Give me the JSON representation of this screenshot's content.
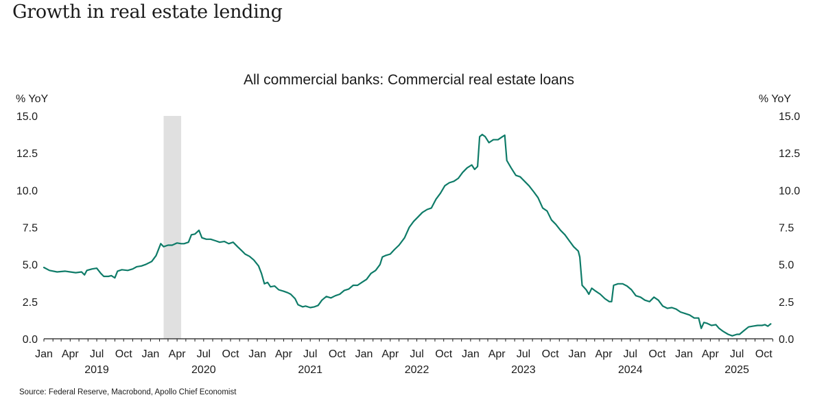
{
  "page": {
    "title": "Growth in real estate lending",
    "source": "Source: Federal Reserve, Macrobond, Apollo Chief Economist"
  },
  "chart_data": {
    "type": "line",
    "title": "All commercial banks: Commercial real estate loans",
    "ylabel_left": "% YoY",
    "ylabel_right": "% YoY",
    "ylim": [
      0,
      15
    ],
    "yticks": [
      "0.0",
      "2.5",
      "5.0",
      "7.5",
      "10.0",
      "12.5",
      "15.0"
    ],
    "x_range": [
      "2019-01-01",
      "2025-10-31"
    ],
    "month_ticks": [
      "Jan",
      "Apr",
      "Jul",
      "Oct",
      "Jan",
      "Apr",
      "Jul",
      "Oct",
      "Jan",
      "Apr",
      "Jul",
      "Oct",
      "Jan",
      "Apr",
      "Jul",
      "Oct",
      "Jan",
      "Apr",
      "Jul",
      "Oct",
      "Jan",
      "Apr",
      "Jul",
      "Oct",
      "Jan",
      "Apr",
      "Jul",
      "Oct"
    ],
    "years": [
      "2019",
      "2020",
      "2021",
      "2022",
      "2023",
      "2024",
      "2025"
    ],
    "recession_band": [
      "2020-02-15",
      "2020-04-15"
    ],
    "line_color": "#0e7b68",
    "band_color": "#e0e0e0",
    "series": [
      {
        "points": [
          [
            "2019-01-01",
            4.8
          ],
          [
            "2019-01-20",
            4.6
          ],
          [
            "2019-02-15",
            4.5
          ],
          [
            "2019-03-15",
            4.55
          ],
          [
            "2019-04-01",
            4.5
          ],
          [
            "2019-04-20",
            4.45
          ],
          [
            "2019-05-10",
            4.5
          ],
          [
            "2019-05-20",
            4.3
          ],
          [
            "2019-05-28",
            4.6
          ],
          [
            "2019-06-15",
            4.7
          ],
          [
            "2019-07-01",
            4.75
          ],
          [
            "2019-07-15",
            4.4
          ],
          [
            "2019-07-25",
            4.2
          ],
          [
            "2019-08-10",
            4.2
          ],
          [
            "2019-08-20",
            4.25
          ],
          [
            "2019-09-01",
            4.1
          ],
          [
            "2019-09-10",
            4.55
          ],
          [
            "2019-09-25",
            4.65
          ],
          [
            "2019-10-15",
            4.6
          ],
          [
            "2019-11-01",
            4.7
          ],
          [
            "2019-11-15",
            4.85
          ],
          [
            "2019-12-01",
            4.9
          ],
          [
            "2019-12-15",
            5.0
          ],
          [
            "2020-01-05",
            5.2
          ],
          [
            "2020-01-20",
            5.6
          ],
          [
            "2020-02-05",
            6.4
          ],
          [
            "2020-02-15",
            6.2
          ],
          [
            "2020-03-01",
            6.3
          ],
          [
            "2020-03-15",
            6.3
          ],
          [
            "2020-04-01",
            6.45
          ],
          [
            "2020-04-15",
            6.4
          ],
          [
            "2020-04-25",
            6.4
          ],
          [
            "2020-05-10",
            6.5
          ],
          [
            "2020-05-20",
            7.0
          ],
          [
            "2020-06-01",
            7.05
          ],
          [
            "2020-06-15",
            7.3
          ],
          [
            "2020-06-25",
            6.8
          ],
          [
            "2020-07-10",
            6.7
          ],
          [
            "2020-07-25",
            6.7
          ],
          [
            "2020-08-10",
            6.6
          ],
          [
            "2020-08-25",
            6.5
          ],
          [
            "2020-09-10",
            6.55
          ],
          [
            "2020-09-25",
            6.4
          ],
          [
            "2020-10-10",
            6.5
          ],
          [
            "2020-10-25",
            6.2
          ],
          [
            "2020-11-10",
            5.9
          ],
          [
            "2020-11-20",
            5.7
          ],
          [
            "2020-12-05",
            5.55
          ],
          [
            "2020-12-20",
            5.3
          ],
          [
            "2021-01-05",
            4.9
          ],
          [
            "2021-01-15",
            4.4
          ],
          [
            "2021-01-25",
            3.7
          ],
          [
            "2021-02-05",
            3.8
          ],
          [
            "2021-02-15",
            3.5
          ],
          [
            "2021-03-01",
            3.55
          ],
          [
            "2021-03-15",
            3.3
          ],
          [
            "2021-04-01",
            3.2
          ],
          [
            "2021-04-15",
            3.1
          ],
          [
            "2021-04-25",
            3.0
          ],
          [
            "2021-05-10",
            2.7
          ],
          [
            "2021-05-20",
            2.3
          ],
          [
            "2021-06-05",
            2.15
          ],
          [
            "2021-06-15",
            2.2
          ],
          [
            "2021-07-01",
            2.1
          ],
          [
            "2021-07-15",
            2.15
          ],
          [
            "2021-07-28",
            2.25
          ],
          [
            "2021-08-10",
            2.6
          ],
          [
            "2021-08-25",
            2.85
          ],
          [
            "2021-09-10",
            2.75
          ],
          [
            "2021-09-25",
            2.9
          ],
          [
            "2021-10-10",
            3.0
          ],
          [
            "2021-10-25",
            3.25
          ],
          [
            "2021-11-10",
            3.35
          ],
          [
            "2021-11-25",
            3.6
          ],
          [
            "2021-12-10",
            3.6
          ],
          [
            "2021-12-25",
            3.8
          ],
          [
            "2022-01-10",
            4.0
          ],
          [
            "2022-01-25",
            4.4
          ],
          [
            "2022-02-10",
            4.6
          ],
          [
            "2022-02-25",
            5.0
          ],
          [
            "2022-03-05",
            5.5
          ],
          [
            "2022-03-15",
            5.6
          ],
          [
            "2022-04-01",
            5.7
          ],
          [
            "2022-04-15",
            6.0
          ],
          [
            "2022-05-01",
            6.3
          ],
          [
            "2022-05-20",
            6.8
          ],
          [
            "2022-06-05",
            7.5
          ],
          [
            "2022-06-20",
            7.9
          ],
          [
            "2022-07-05",
            8.2
          ],
          [
            "2022-07-20",
            8.5
          ],
          [
            "2022-08-05",
            8.7
          ],
          [
            "2022-08-20",
            8.8
          ],
          [
            "2022-09-05",
            9.4
          ],
          [
            "2022-09-20",
            9.8
          ],
          [
            "2022-10-05",
            10.3
          ],
          [
            "2022-10-20",
            10.5
          ],
          [
            "2022-11-05",
            10.6
          ],
          [
            "2022-11-20",
            10.8
          ],
          [
            "2022-12-05",
            11.2
          ],
          [
            "2022-12-20",
            11.5
          ],
          [
            "2023-01-05",
            11.7
          ],
          [
            "2023-01-15",
            11.4
          ],
          [
            "2023-01-25",
            11.6
          ],
          [
            "2023-02-01",
            13.6
          ],
          [
            "2023-02-10",
            13.75
          ],
          [
            "2023-02-20",
            13.6
          ],
          [
            "2023-03-05",
            13.2
          ],
          [
            "2023-03-20",
            13.4
          ],
          [
            "2023-04-05",
            13.4
          ],
          [
            "2023-04-20",
            13.6
          ],
          [
            "2023-04-28",
            13.7
          ],
          [
            "2023-05-05",
            12.0
          ],
          [
            "2023-05-20",
            11.5
          ],
          [
            "2023-06-05",
            11.0
          ],
          [
            "2023-06-20",
            10.9
          ],
          [
            "2023-07-05",
            10.6
          ],
          [
            "2023-07-20",
            10.3
          ],
          [
            "2023-08-05",
            9.9
          ],
          [
            "2023-08-20",
            9.5
          ],
          [
            "2023-09-05",
            8.8
          ],
          [
            "2023-09-20",
            8.6
          ],
          [
            "2023-10-05",
            8.0
          ],
          [
            "2023-10-20",
            7.7
          ],
          [
            "2023-11-05",
            7.3
          ],
          [
            "2023-11-20",
            7.0
          ],
          [
            "2023-12-05",
            6.6
          ],
          [
            "2023-12-20",
            6.2
          ],
          [
            "2024-01-05",
            5.9
          ],
          [
            "2024-01-10",
            5.5
          ],
          [
            "2024-01-18",
            3.6
          ],
          [
            "2024-02-01",
            3.3
          ],
          [
            "2024-02-10",
            3.0
          ],
          [
            "2024-02-20",
            3.4
          ],
          [
            "2024-03-05",
            3.2
          ],
          [
            "2024-03-20",
            3.0
          ],
          [
            "2024-04-05",
            2.7
          ],
          [
            "2024-04-20",
            2.5
          ],
          [
            "2024-04-28",
            2.5
          ],
          [
            "2024-05-05",
            3.6
          ],
          [
            "2024-05-20",
            3.7
          ],
          [
            "2024-06-05",
            3.7
          ],
          [
            "2024-06-20",
            3.55
          ],
          [
            "2024-07-05",
            3.3
          ],
          [
            "2024-07-20",
            2.9
          ],
          [
            "2024-08-05",
            2.8
          ],
          [
            "2024-08-20",
            2.6
          ],
          [
            "2024-09-05",
            2.5
          ],
          [
            "2024-09-20",
            2.8
          ],
          [
            "2024-10-05",
            2.6
          ],
          [
            "2024-10-20",
            2.2
          ],
          [
            "2024-11-05",
            2.05
          ],
          [
            "2024-11-20",
            2.1
          ],
          [
            "2024-12-05",
            2.0
          ],
          [
            "2024-12-20",
            1.8
          ],
          [
            "2025-01-05",
            1.7
          ],
          [
            "2025-01-20",
            1.6
          ],
          [
            "2025-02-05",
            1.4
          ],
          [
            "2025-02-20",
            1.4
          ],
          [
            "2025-03-01",
            0.7
          ],
          [
            "2025-03-10",
            1.1
          ],
          [
            "2025-03-20",
            1.05
          ],
          [
            "2025-04-05",
            0.9
          ],
          [
            "2025-04-20",
            0.95
          ],
          [
            "2025-05-01",
            0.7
          ],
          [
            "2025-05-15",
            0.5
          ],
          [
            "2025-06-01",
            0.3
          ],
          [
            "2025-06-15",
            0.2
          ],
          [
            "2025-07-01",
            0.3
          ],
          [
            "2025-07-10",
            0.3
          ],
          [
            "2025-07-25",
            0.55
          ],
          [
            "2025-08-10",
            0.8
          ],
          [
            "2025-08-25",
            0.85
          ],
          [
            "2025-09-10",
            0.9
          ],
          [
            "2025-09-25",
            0.9
          ],
          [
            "2025-10-05",
            0.95
          ],
          [
            "2025-10-15",
            0.85
          ],
          [
            "2025-10-25",
            1.0
          ]
        ]
      }
    ]
  }
}
